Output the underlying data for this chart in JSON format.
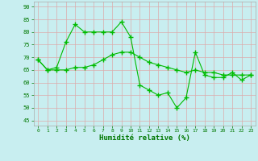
{
  "line1_x": [
    0,
    1,
    2,
    3,
    4,
    5,
    6,
    7,
    8,
    9,
    10,
    11,
    12,
    13,
    14,
    15,
    16,
    17,
    18,
    19,
    20,
    21,
    22,
    23
  ],
  "line1_y": [
    69,
    65,
    66,
    76,
    83,
    80,
    80,
    80,
    80,
    84,
    78,
    59,
    57,
    55,
    56,
    50,
    54,
    72,
    63,
    62,
    62,
    64,
    61,
    63
  ],
  "line2_x": [
    0,
    1,
    2,
    3,
    4,
    5,
    6,
    7,
    8,
    9,
    10,
    11,
    12,
    13,
    14,
    15,
    16,
    17,
    18,
    19,
    20,
    21,
    22,
    23
  ],
  "line2_y": [
    69,
    65,
    65,
    65,
    66,
    66,
    67,
    69,
    71,
    72,
    72,
    70,
    68,
    67,
    66,
    65,
    64,
    65,
    64,
    64,
    63,
    63,
    63,
    63
  ],
  "line_color": "#00bb00",
  "bg_color": "#c8eef0",
  "grid_color": "#ddaaaa",
  "xlabel": "Humidité relative (%)",
  "xlabel_color": "#007700",
  "tick_color": "#007700",
  "ylabel_ticks": [
    45,
    50,
    55,
    60,
    65,
    70,
    75,
    80,
    85,
    90
  ],
  "xlim": [
    -0.5,
    23.5
  ],
  "ylim": [
    43,
    92
  ],
  "figsize": [
    3.2,
    2.0
  ],
  "dpi": 100
}
